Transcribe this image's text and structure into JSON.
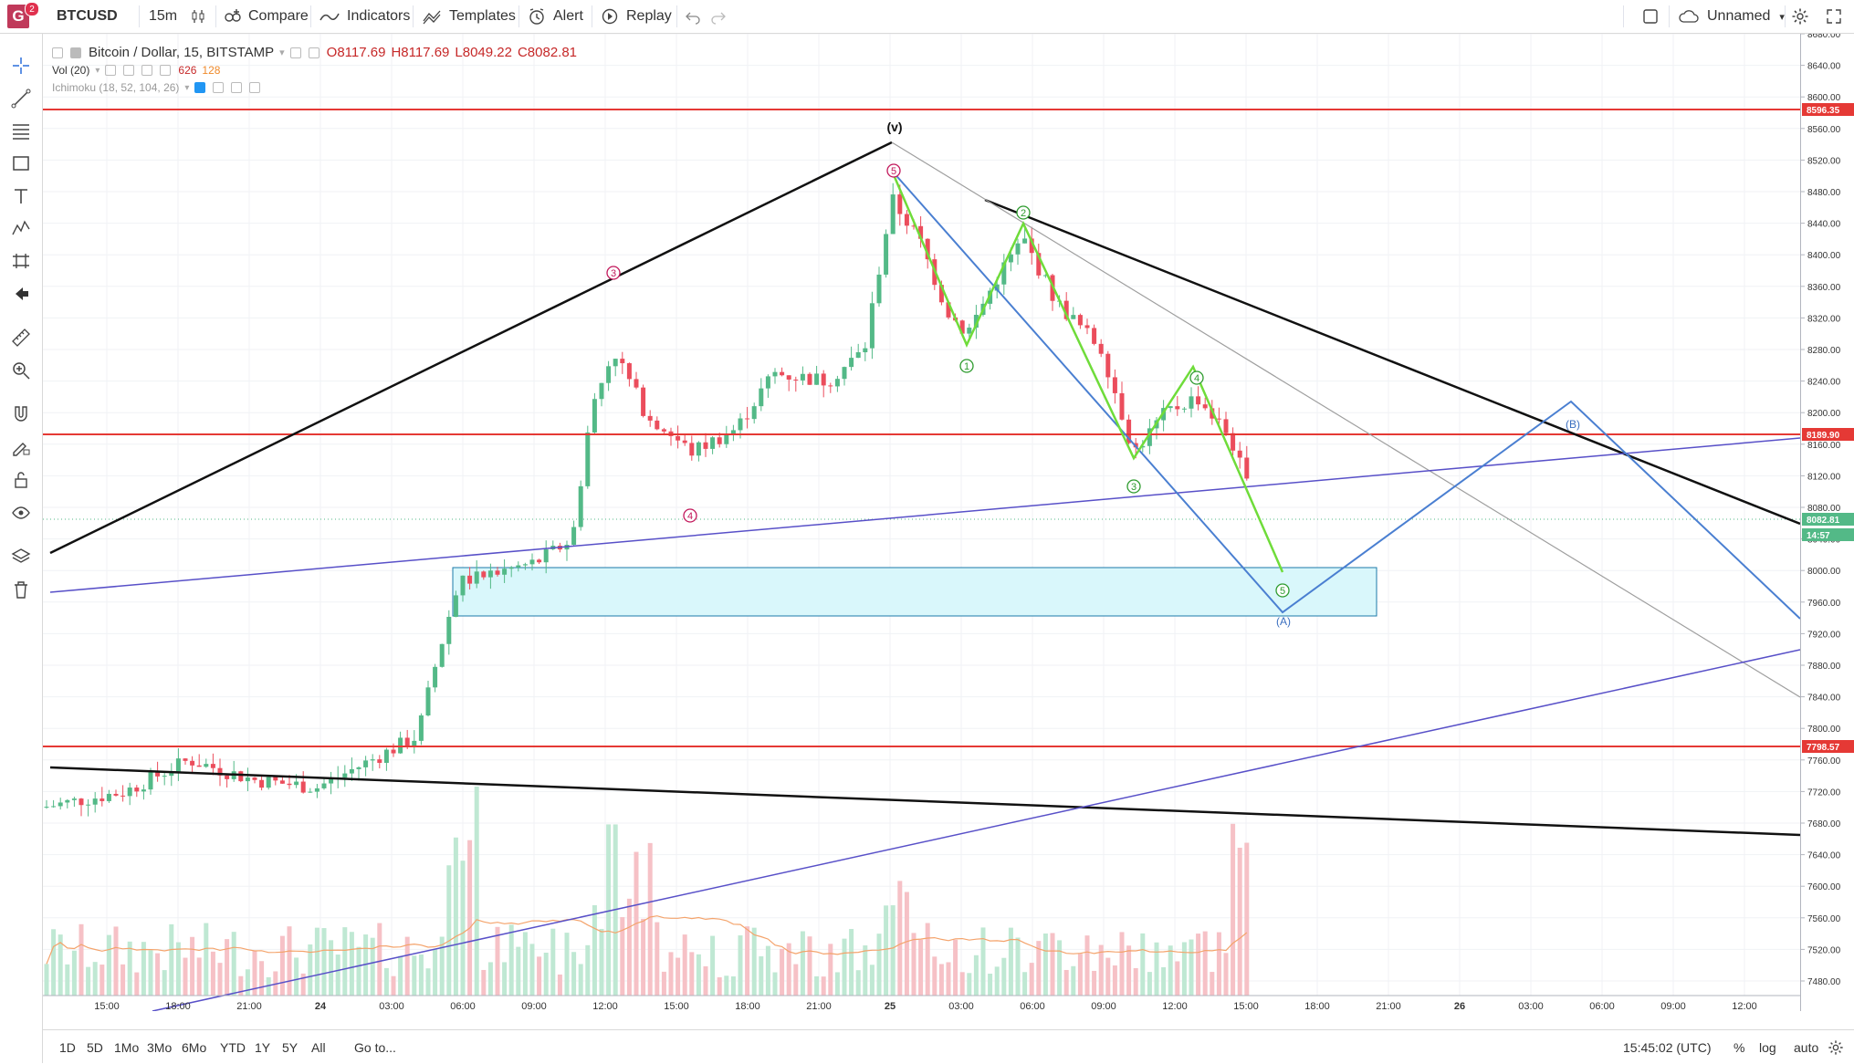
{
  "topbar": {
    "logo_letter": "G",
    "badge": "2",
    "symbol": "BTCUSD",
    "interval": "15m",
    "compare": "Compare",
    "indicators": "Indicators",
    "templates": "Templates",
    "alert": "Alert",
    "replay": "Replay",
    "layout_name": "Unnamed"
  },
  "legend": {
    "title": "Bitcoin / Dollar, 15, BITSTAMP",
    "ohlc_o": "O8117.69",
    "ohlc_h": "H8117.69",
    "ohlc_l": "L8049.22",
    "ohlc_c": "C8082.81",
    "vol_label": "Vol (20)",
    "vol_value": "626",
    "vol_ma": "128",
    "ichimoku_label": "Ichimoku (18, 52, 104, 26)"
  },
  "price_axis": {
    "ticks": [
      "8680.00",
      "8640.00",
      "8600.00",
      "8560.00",
      "8520.00",
      "8480.00",
      "8440.00",
      "8400.00",
      "8360.00",
      "8320.00",
      "8280.00",
      "8240.00",
      "8200.00",
      "8160.00",
      "8120.00",
      "8080.00",
      "8040.00",
      "8000.00",
      "7960.00",
      "7920.00",
      "7880.00",
      "7840.00",
      "7800.00",
      "7760.00",
      "7720.00",
      "7680.00",
      "7640.00",
      "7600.00",
      "7560.00",
      "7520.00",
      "7480.00"
    ],
    "labels": {
      "r1": "8596.35",
      "r2": "8189.90",
      "r3": "7798.57",
      "current": "8082.81",
      "countdown": "14:57"
    }
  },
  "time_axis": {
    "ticks": [
      "15:00",
      "18:00",
      "21:00",
      "24",
      "03:00",
      "06:00",
      "09:00",
      "12:00",
      "15:00",
      "18:00",
      "21:00",
      "25",
      "03:00",
      "06:00",
      "09:00",
      "12:00",
      "15:00",
      "18:00",
      "21:00",
      "26",
      "03:00",
      "06:00",
      "09:00",
      "12:00"
    ]
  },
  "annotations": {
    "wave_v": "(v)",
    "red_3": "3",
    "red_4": "4",
    "red_5": "5",
    "g1": "1",
    "g2": "2",
    "g3": "3",
    "g4": "4",
    "g5": "5",
    "wave_A": "(A)",
    "wave_B": "(B)"
  },
  "bottombar": {
    "ranges": [
      "1D",
      "5D",
      "1Mo",
      "3Mo",
      "6Mo",
      "YTD",
      "1Y",
      "5Y",
      "All"
    ],
    "goto": "Go to...",
    "clock": "15:45:02 (UTC)",
    "percent": "%",
    "log": "log",
    "auto": "auto"
  },
  "colors": {
    "up": "#53b987",
    "down": "#eb4d5c",
    "resistance": "#e53935",
    "wave_green": "#6fdc3a",
    "channel_blue": "#4a7fd1",
    "trend_purple": "#5850c8",
    "zone_fill": "#d9f7fb",
    "zone_stroke": "#1c7aa8"
  }
}
